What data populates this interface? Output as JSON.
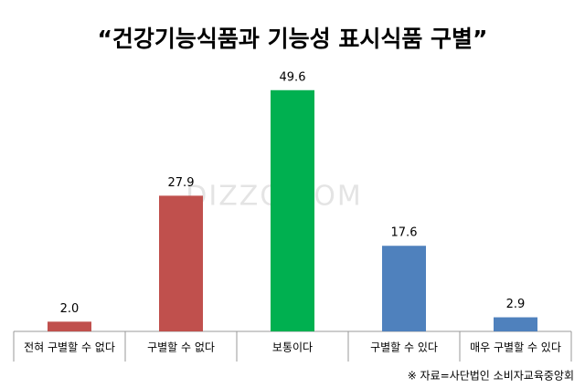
{
  "chart_data": {
    "type": "bar",
    "title": "“건강기능식품과 기능성 표시식품 구별”",
    "categories": [
      "전혀 구별할 수 없다",
      "구별할 수 없다",
      "보통이다",
      "구별할 수 있다",
      "매우 구별할 수 있다"
    ],
    "values": [
      2.0,
      27.9,
      49.6,
      17.6,
      2.9
    ],
    "value_labels": [
      "2.0",
      "27.9",
      "49.6",
      "17.6",
      "2.9"
    ],
    "colors": [
      "#c0504d",
      "#c0504d",
      "#00b050",
      "#4f81bd",
      "#4f81bd"
    ],
    "ylim": [
      0,
      55
    ],
    "source": "※ 자료=사단법인 소비자교육중앙회",
    "watermark": "DIZZO.COM"
  }
}
